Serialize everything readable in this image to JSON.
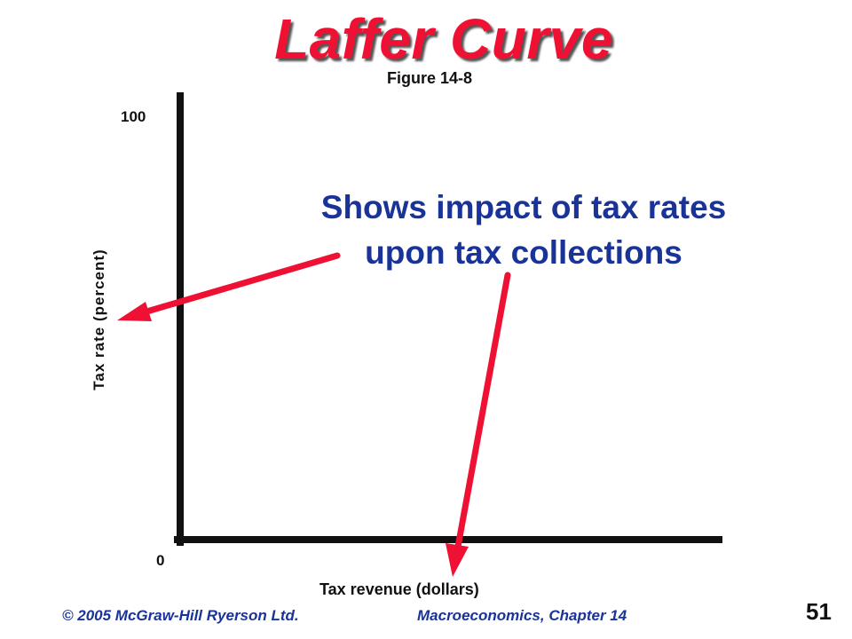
{
  "slide": {
    "title": "Laffer Curve",
    "figure_label": "Figure 14-8",
    "annotation_lines": [
      "Shows impact of tax rates",
      "upon tax collections"
    ],
    "footer_copyright": "© 2005 McGraw-Hill Ryerson Ltd.",
    "footer_course": "Macroeconomics, Chapter 14",
    "page_number": "51"
  },
  "colors": {
    "title": "#ee1133",
    "annotation": "#1a3399",
    "arrow": "#ee1133",
    "axis": "#111111"
  },
  "chart_data": {
    "type": "line",
    "title": "",
    "xlabel": "Tax revenue (dollars)",
    "ylabel": "Tax rate (percent)",
    "ylim": [
      0,
      100
    ],
    "y_tick_labels": [
      "100",
      "0"
    ],
    "series": [],
    "grid": false
  }
}
